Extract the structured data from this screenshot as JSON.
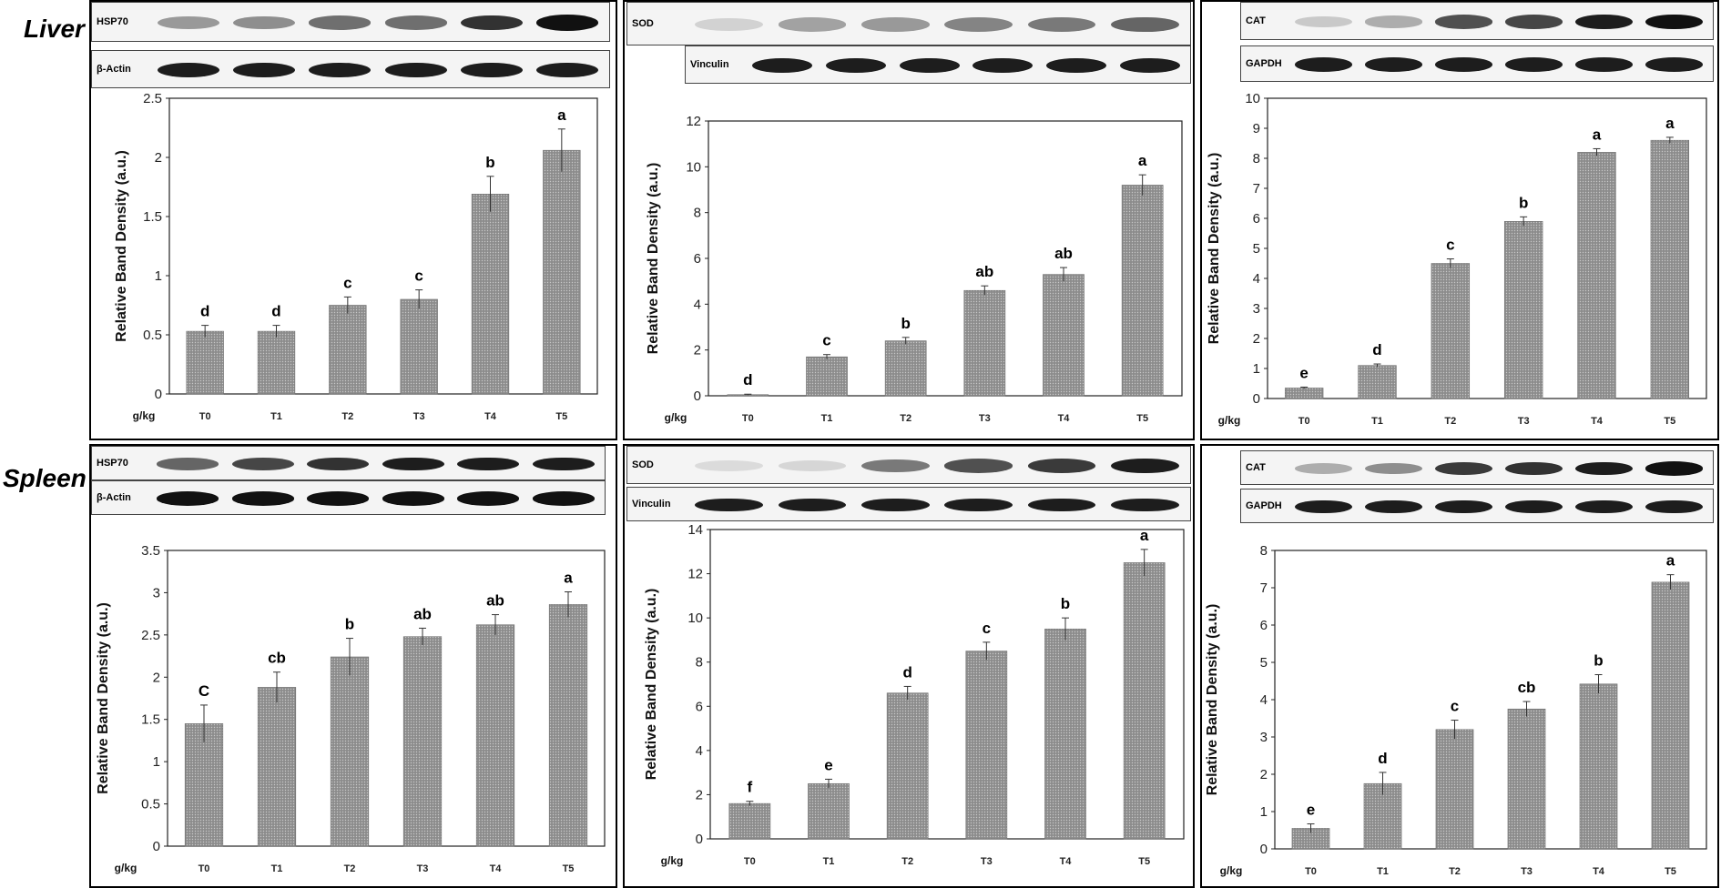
{
  "row_labels": [
    "Liver",
    "Spleen"
  ],
  "colors": {
    "bar": "#8c8c8c",
    "bar_stroke": "#6e6e6e",
    "band": "#111111"
  },
  "chart_data": [
    {
      "type": "bar",
      "panel": "liver-hsp70",
      "blots": [
        {
          "label": "HSP70",
          "intensity": [
            0.35,
            0.4,
            0.55,
            0.55,
            0.85,
            1.0
          ]
        },
        {
          "label": "β-Actin",
          "intensity": [
            0.95,
            0.95,
            0.95,
            0.95,
            0.95,
            0.95
          ]
        }
      ],
      "unit_label": "g/kg",
      "categories": [
        "T0",
        "T1",
        "T2",
        "T3",
        "T4",
        "T5"
      ],
      "values": [
        0.53,
        0.53,
        0.75,
        0.8,
        1.69,
        2.06
      ],
      "errors": [
        0.05,
        0.05,
        0.07,
        0.08,
        0.15,
        0.18
      ],
      "letters": [
        "d",
        "d",
        "c",
        "c",
        "b",
        "a"
      ],
      "ylabel": "Relative Band Density (a.u.)",
      "ylim": [
        0,
        2.5
      ],
      "yticks": [
        "0",
        "0.5",
        "1",
        "1.5",
        "2",
        "2.5"
      ]
    },
    {
      "type": "bar",
      "panel": "liver-sod",
      "blots": [
        {
          "label": "SOD",
          "intensity": [
            0.08,
            0.3,
            0.35,
            0.45,
            0.5,
            0.6
          ]
        },
        {
          "label": "Vinculin",
          "intensity": [
            0.95,
            0.95,
            0.95,
            0.95,
            0.95,
            0.95
          ]
        }
      ],
      "unit_label": "g/kg",
      "categories": [
        "T0",
        "T1",
        "T2",
        "T3",
        "T4",
        "T5"
      ],
      "values": [
        0.05,
        1.7,
        2.4,
        4.6,
        5.3,
        9.2
      ],
      "errors": [
        0.02,
        0.1,
        0.15,
        0.2,
        0.3,
        0.45
      ],
      "letters": [
        "d",
        "c",
        "b",
        "ab",
        "ab",
        "a"
      ],
      "ylabel": "Relative Band Density (a.u.)",
      "ylim": [
        0,
        12
      ],
      "yticks": [
        "0",
        "2",
        "4",
        "6",
        "8",
        "10",
        "12"
      ]
    },
    {
      "type": "bar",
      "panel": "liver-cat",
      "blots": [
        {
          "label": "CAT",
          "intensity": [
            0.12,
            0.25,
            0.7,
            0.75,
            0.95,
            1.0
          ]
        },
        {
          "label": "GAPDH",
          "intensity": [
            0.95,
            0.95,
            0.95,
            0.95,
            0.95,
            0.95
          ]
        }
      ],
      "unit_label": "g/kg",
      "categories": [
        "T0",
        "T1",
        "T2",
        "T3",
        "T4",
        "T5"
      ],
      "values": [
        0.35,
        1.1,
        4.5,
        5.9,
        8.2,
        8.6
      ],
      "errors": [
        0.03,
        0.05,
        0.15,
        0.15,
        0.12,
        0.1
      ],
      "letters": [
        "e",
        "d",
        "c",
        "b",
        "a",
        "a"
      ],
      "ylabel": "Relative Band Density (a.u.)",
      "ylim": [
        0,
        10
      ],
      "yticks": [
        "0",
        "1",
        "2",
        "3",
        "4",
        "5",
        "6",
        "7",
        "8",
        "9",
        "10"
      ]
    },
    {
      "type": "bar",
      "panel": "spleen-hsp70",
      "blots": [
        {
          "label": "HSP70",
          "intensity": [
            0.6,
            0.75,
            0.85,
            0.95,
            0.95,
            0.95
          ]
        },
        {
          "label": "β-Actin",
          "intensity": [
            1.0,
            1.0,
            1.0,
            1.0,
            1.0,
            1.0
          ]
        }
      ],
      "unit_label": "g/kg",
      "categories": [
        "T0",
        "T1",
        "T2",
        "T3",
        "T4",
        "T5"
      ],
      "values": [
        1.45,
        1.88,
        2.24,
        2.48,
        2.62,
        2.86
      ],
      "errors": [
        0.22,
        0.18,
        0.22,
        0.1,
        0.12,
        0.15
      ],
      "letters": [
        "C",
        "cb",
        "b",
        "ab",
        "ab",
        "a"
      ],
      "ylabel": "Relative Band Density (a.u.)",
      "ylim": [
        0,
        3.5
      ],
      "yticks": [
        "0",
        "0.5",
        "1",
        "1.5",
        "2",
        "2.5",
        "3",
        "3.5"
      ]
    },
    {
      "type": "bar",
      "panel": "spleen-sod",
      "blots": [
        {
          "label": "SOD",
          "intensity": [
            0.03,
            0.05,
            0.5,
            0.7,
            0.8,
            0.95
          ]
        },
        {
          "label": "Vinculin",
          "intensity": [
            0.95,
            0.95,
            0.95,
            0.95,
            0.95,
            0.95
          ]
        }
      ],
      "unit_label": "g/kg",
      "categories": [
        "T0",
        "T1",
        "T2",
        "T3",
        "T4",
        "T5"
      ],
      "values": [
        1.6,
        2.5,
        6.6,
        8.5,
        9.5,
        12.5
      ],
      "errors": [
        0.1,
        0.2,
        0.3,
        0.4,
        0.5,
        0.6
      ],
      "letters": [
        "f",
        "e",
        "d",
        "c",
        "b",
        "a"
      ],
      "ylabel": "Relative Band Density (a.u.)",
      "ylim": [
        0,
        14
      ],
      "yticks": [
        "0",
        "2",
        "4",
        "6",
        "8",
        "10",
        "12",
        "14"
      ]
    },
    {
      "type": "bar",
      "panel": "spleen-cat",
      "blots": [
        {
          "label": "CAT",
          "intensity": [
            0.25,
            0.4,
            0.8,
            0.85,
            0.95,
            1.0
          ]
        },
        {
          "label": "GAPDH",
          "intensity": [
            0.95,
            0.95,
            0.95,
            0.95,
            0.95,
            0.95
          ]
        }
      ],
      "unit_label": "g/kg",
      "categories": [
        "T0",
        "T1",
        "T2",
        "T3",
        "T4",
        "T5"
      ],
      "values": [
        0.55,
        1.75,
        3.2,
        3.75,
        4.42,
        7.15
      ],
      "errors": [
        0.12,
        0.3,
        0.25,
        0.2,
        0.25,
        0.2
      ],
      "letters": [
        "e",
        "d",
        "c",
        "cb",
        "b",
        "a"
      ],
      "ylabel": "Relative Band Density (a.u.)",
      "ylim": [
        0,
        8
      ],
      "yticks": [
        "0",
        "1",
        "2",
        "3",
        "4",
        "5",
        "6",
        "7",
        "8"
      ]
    }
  ]
}
